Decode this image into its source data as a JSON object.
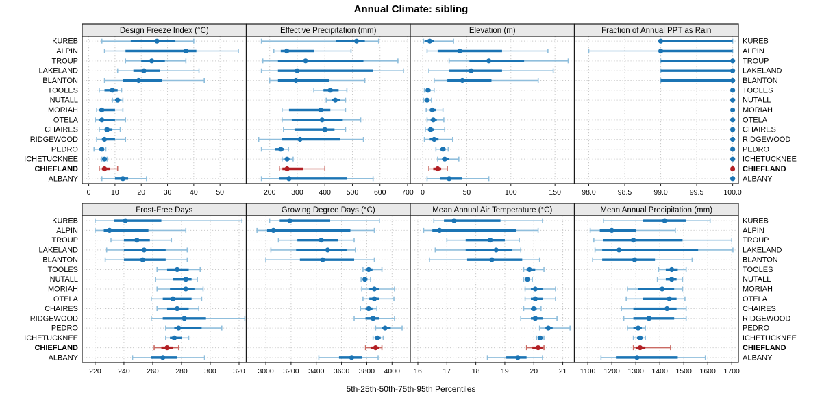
{
  "chart_data": {
    "type": "dotplot",
    "layout": "trellis 4 cols x 2 rows",
    "title": "Annual Climate: sibling",
    "xlabel": "5th-25th-50th-75th-95th Percentiles",
    "percentiles": [
      5,
      25,
      50,
      75,
      95
    ],
    "legend_position": "none",
    "grid": "dotted",
    "stations": [
      "KUREB",
      "ALPIN",
      "TROUP",
      "LAKELAND",
      "BLANTON",
      "TOOLES",
      "NUTALL",
      "MORIAH",
      "OTELA",
      "CHAIRES",
      "RIDGEWOOD",
      "PEDRO",
      "ICHETUCKNEE",
      "CHIEFLAND",
      "ALBANY"
    ],
    "highlight_station": "CHIEFLAND",
    "colors": {
      "series_main": "#1b74b4",
      "series_whisker": "#8fbedc",
      "highlight_main": "#b22025",
      "highlight_whisker": "#ca6a63",
      "strip_bg": "#e9e9e9",
      "panel_border": "#1a1a1a",
      "grid": "#c9c9c9"
    },
    "panels": [
      {
        "title": "Design Freeze Index (°C)",
        "xlim": [
          -2.5,
          60
        ],
        "ticks": [
          0,
          10,
          20,
          30,
          40,
          50
        ],
        "tick_labels": [
          "0",
          "10",
          "20",
          "30",
          "40",
          "50"
        ],
        "values": [
          [
            5,
            16,
            26,
            33,
            40
          ],
          [
            6,
            14,
            37,
            41,
            57
          ],
          [
            14,
            20,
            24,
            29,
            37
          ],
          [
            11,
            17,
            21,
            27,
            42
          ],
          [
            6,
            13,
            19,
            28,
            44
          ],
          [
            4,
            6,
            9,
            11,
            12.5
          ],
          [
            9,
            10,
            11,
            12,
            13
          ],
          [
            3,
            4,
            5,
            10,
            13
          ],
          [
            2.5,
            4,
            5,
            10,
            14
          ],
          [
            4,
            6,
            7,
            9,
            12
          ],
          [
            3,
            5,
            6,
            10,
            14
          ],
          [
            2,
            4,
            5,
            5.5,
            6.5
          ],
          [
            5,
            5.5,
            6,
            6.5,
            7
          ],
          [
            4,
            5,
            6,
            8,
            11
          ],
          [
            5,
            10,
            13,
            15,
            22
          ]
        ]
      },
      {
        "title": "Effective Precipitation (mm)",
        "xlim": [
          115,
          710
        ],
        "ticks": [
          200,
          300,
          400,
          500,
          600,
          700
        ],
        "tick_labels": [
          "200",
          "300",
          "400",
          "500",
          "600",
          "700"
        ],
        "values": [
          [
            170,
            440,
            515,
            545,
            595
          ],
          [
            215,
            240,
            262,
            360,
            495
          ],
          [
            175,
            230,
            330,
            540,
            665
          ],
          [
            170,
            230,
            300,
            575,
            685
          ],
          [
            200,
            230,
            295,
            415,
            545
          ],
          [
            360,
            395,
            420,
            450,
            480
          ],
          [
            405,
            425,
            438,
            455,
            475
          ],
          [
            245,
            270,
            385,
            420,
            475
          ],
          [
            245,
            280,
            390,
            465,
            530
          ],
          [
            250,
            290,
            400,
            435,
            475
          ],
          [
            160,
            245,
            310,
            455,
            540
          ],
          [
            170,
            220,
            240,
            252,
            268
          ],
          [
            245,
            255,
            263,
            272,
            285
          ],
          [
            235,
            246,
            263,
            320,
            400
          ],
          [
            170,
            235,
            270,
            480,
            575
          ]
        ]
      },
      {
        "title": "Elevation (m)",
        "xlim": [
          -14,
          172
        ],
        "ticks": [
          0,
          50,
          100,
          150
        ],
        "tick_labels": [
          "0",
          "50",
          "100",
          "150"
        ],
        "values": [
          [
            1,
            3,
            8,
            13,
            35
          ],
          [
            5,
            17,
            42,
            90,
            142
          ],
          [
            30,
            53,
            75,
            115,
            165
          ],
          [
            7,
            30,
            55,
            90,
            148
          ],
          [
            13,
            28,
            45,
            78,
            131
          ],
          [
            2,
            4,
            6,
            9,
            13
          ],
          [
            1,
            3,
            5,
            7,
            10
          ],
          [
            4,
            8,
            11,
            15,
            23
          ],
          [
            5,
            9,
            12,
            16,
            24
          ],
          [
            3,
            6,
            9,
            13,
            25
          ],
          [
            2,
            8,
            13,
            18,
            34
          ],
          [
            15,
            20,
            23,
            26,
            29
          ],
          [
            17,
            22,
            25,
            30,
            41
          ],
          [
            7,
            12,
            17,
            21,
            28
          ],
          [
            5,
            20,
            30,
            45,
            75
          ]
        ]
      },
      {
        "title": "Fraction of Annual PPT as Rain",
        "xlim": [
          97.8,
          100.08
        ],
        "ticks": [
          98.0,
          98.5,
          99.0,
          99.5,
          100.0
        ],
        "tick_labels": [
          "98.0",
          "98.5",
          "99.0",
          "99.5",
          "100.0"
        ],
        "values": [
          [
            99,
            99,
            99,
            100,
            100
          ],
          [
            98,
            99,
            99,
            100,
            100
          ],
          [
            99,
            99,
            100,
            100,
            100
          ],
          [
            99,
            99,
            100,
            100,
            100
          ],
          [
            99,
            99,
            100,
            100,
            100
          ],
          [
            100,
            100,
            100,
            100,
            100
          ],
          [
            100,
            100,
            100,
            100,
            100
          ],
          [
            100,
            100,
            100,
            100,
            100
          ],
          [
            100,
            100,
            100,
            100,
            100
          ],
          [
            100,
            100,
            100,
            100,
            100
          ],
          [
            100,
            100,
            100,
            100,
            100
          ],
          [
            100,
            100,
            100,
            100,
            100
          ],
          [
            100,
            100,
            100,
            100,
            100
          ],
          [
            100,
            100,
            100,
            100,
            100
          ],
          [
            100,
            100,
            100,
            100,
            100
          ]
        ]
      },
      {
        "title": "Frost-Free Days",
        "xlim": [
          211,
          325
        ],
        "ticks": [
          220,
          240,
          260,
          280,
          300,
          320
        ],
        "tick_labels": [
          "220",
          "240",
          "260",
          "280",
          "300",
          "320"
        ],
        "values": [
          [
            220,
            233,
            241,
            266,
            322
          ],
          [
            220,
            226,
            230,
            257,
            283
          ],
          [
            231,
            240,
            249,
            258,
            273
          ],
          [
            228,
            240,
            254,
            269,
            284
          ],
          [
            227,
            240,
            253,
            269,
            284
          ],
          [
            263,
            270,
            277,
            285,
            293
          ],
          [
            262,
            274,
            283,
            287,
            291
          ],
          [
            263,
            272,
            283,
            289,
            295
          ],
          [
            259,
            267,
            274,
            287,
            294
          ],
          [
            263,
            270,
            277,
            285,
            292
          ],
          [
            259,
            267,
            282,
            297,
            324
          ],
          [
            269,
            275,
            278,
            294,
            308
          ],
          [
            269,
            272,
            275,
            280,
            285
          ],
          [
            261,
            266,
            270,
            274,
            278
          ],
          [
            246,
            259,
            267,
            277,
            296
          ]
        ]
      },
      {
        "title": "Growing Degree Days (°C)",
        "xlim": [
          2845,
          4145
        ],
        "ticks": [
          3000,
          3200,
          3400,
          3600,
          3800,
          4000
        ],
        "tick_labels": [
          "3000",
          "3200",
          "3400",
          "3600",
          "3800",
          "4000"
        ],
        "values": [
          [
            3030,
            3110,
            3190,
            3510,
            3900
          ],
          [
            2930,
            3010,
            3060,
            3670,
            3860
          ],
          [
            3100,
            3250,
            3440,
            3570,
            3700
          ],
          [
            3040,
            3240,
            3490,
            3640,
            3710
          ],
          [
            3000,
            3270,
            3450,
            3700,
            3860
          ],
          [
            3770,
            3790,
            3815,
            3845,
            3920
          ],
          [
            3755,
            3770,
            3785,
            3805,
            3830
          ],
          [
            3760,
            3820,
            3860,
            3900,
            4020
          ],
          [
            3770,
            3820,
            3860,
            3900,
            4015
          ],
          [
            3750,
            3790,
            3815,
            3845,
            3880
          ],
          [
            3700,
            3790,
            3850,
            3900,
            4020
          ],
          [
            3870,
            3920,
            3945,
            3990,
            4080
          ],
          [
            3850,
            3870,
            3885,
            3910,
            3930
          ],
          [
            3790,
            3830,
            3870,
            3900,
            3920
          ],
          [
            3420,
            3580,
            3680,
            3760,
            3890
          ]
        ]
      },
      {
        "title": "Mean Annual Air Temperature (°C)",
        "xlim": [
          15.74,
          21.4
        ],
        "ticks": [
          16,
          17,
          18,
          19,
          20,
          21
        ],
        "tick_labels": [
          "16",
          "17",
          "18",
          "19",
          "20",
          "21"
        ],
        "values": [
          [
            16.55,
            16.9,
            17.25,
            18.85,
            20.3
          ],
          [
            16.2,
            16.5,
            16.75,
            19.4,
            20.15
          ],
          [
            17.0,
            17.65,
            18.5,
            19.0,
            19.5
          ],
          [
            16.6,
            17.65,
            18.7,
            19.25,
            19.55
          ],
          [
            16.4,
            17.7,
            18.55,
            19.6,
            20.2
          ],
          [
            19.65,
            19.75,
            19.85,
            20.05,
            20.35
          ],
          [
            19.65,
            19.7,
            19.78,
            19.85,
            19.95
          ],
          [
            19.7,
            19.9,
            20.05,
            20.3,
            20.75
          ],
          [
            19.7,
            19.9,
            20.05,
            20.3,
            20.75
          ],
          [
            19.65,
            19.9,
            20.0,
            20.1,
            20.25
          ],
          [
            19.55,
            19.9,
            20.05,
            20.3,
            20.8
          ],
          [
            20.2,
            20.4,
            20.5,
            20.65,
            21.25
          ],
          [
            20.1,
            20.15,
            20.22,
            20.3,
            20.35
          ],
          [
            19.75,
            19.95,
            20.15,
            20.3,
            20.35
          ],
          [
            18.4,
            19.05,
            19.45,
            19.75,
            20.3
          ]
        ]
      },
      {
        "title": "Mean Annual Precipitation (mm)",
        "xlim": [
          1044,
          1728
        ],
        "ticks": [
          1100,
          1200,
          1300,
          1400,
          1500,
          1600,
          1700
        ],
        "tick_labels": [
          "1100",
          "1200",
          "1300",
          "1400",
          "1500",
          "1600",
          "1700"
        ],
        "values": [
          [
            1165,
            1330,
            1420,
            1510,
            1610
          ],
          [
            1110,
            1150,
            1200,
            1300,
            1465
          ],
          [
            1125,
            1165,
            1290,
            1495,
            1700
          ],
          [
            1130,
            1160,
            1230,
            1560,
            1705
          ],
          [
            1120,
            1160,
            1295,
            1380,
            1535
          ],
          [
            1395,
            1425,
            1450,
            1475,
            1510
          ],
          [
            1390,
            1425,
            1450,
            1470,
            1495
          ],
          [
            1265,
            1310,
            1410,
            1460,
            1495
          ],
          [
            1260,
            1330,
            1440,
            1470,
            1505
          ],
          [
            1240,
            1290,
            1430,
            1470,
            1510
          ],
          [
            1250,
            1290,
            1355,
            1460,
            1510
          ],
          [
            1265,
            1290,
            1310,
            1325,
            1340
          ],
          [
            1290,
            1305,
            1318,
            1328,
            1340
          ],
          [
            1290,
            1300,
            1318,
            1340,
            1445
          ],
          [
            1155,
            1220,
            1305,
            1475,
            1590
          ]
        ]
      }
    ]
  }
}
